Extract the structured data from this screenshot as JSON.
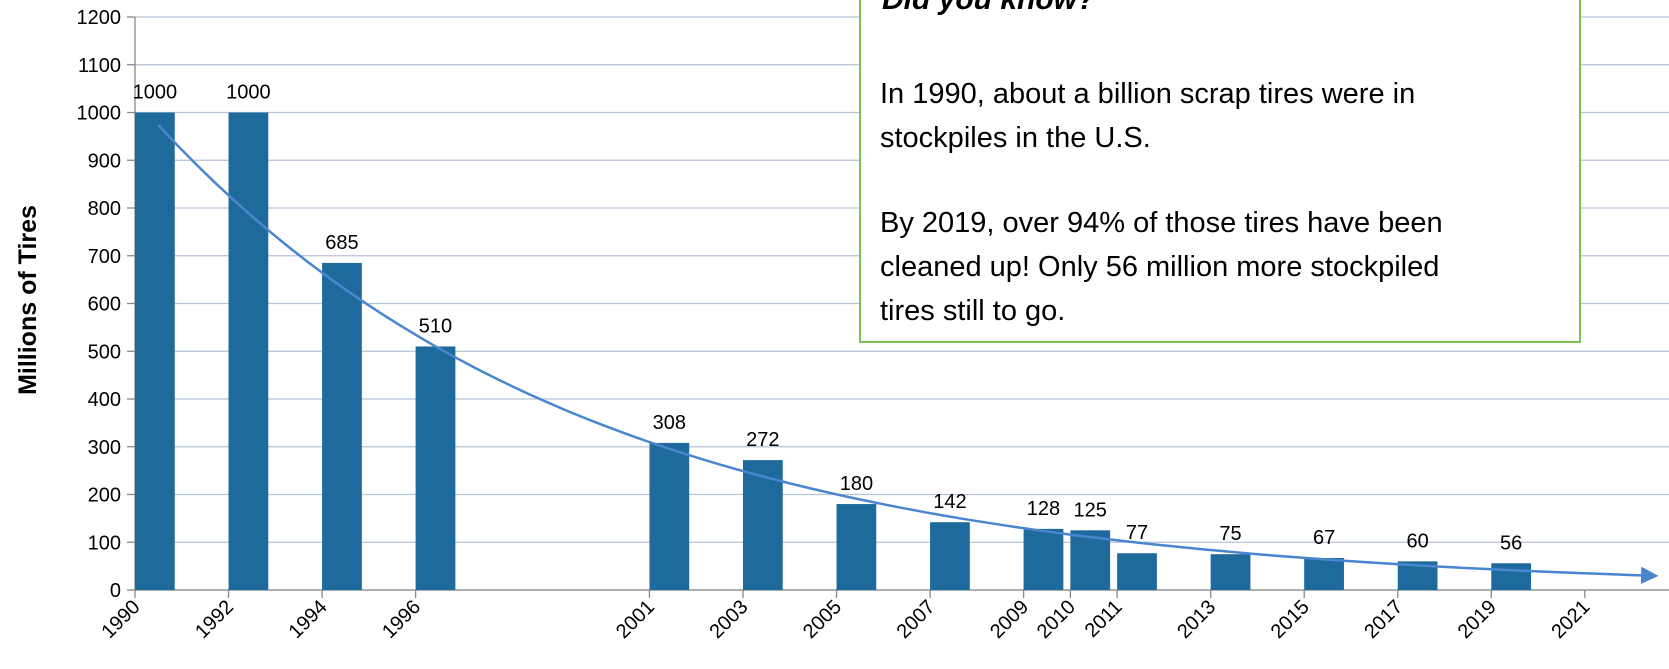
{
  "chart_data": {
    "type": "bar",
    "y_label": "Millions of Tires",
    "x": [
      1990,
      1992,
      1994,
      1996,
      2001,
      2003,
      2005,
      2007,
      2009,
      2010,
      2011,
      2013,
      2015,
      2017,
      2019
    ],
    "values": [
      1000,
      1000,
      685,
      510,
      308,
      272,
      180,
      142,
      128,
      125,
      77,
      75,
      67,
      60,
      56
    ],
    "color": "#1f6a9c",
    "trendline": {
      "type": "exponential",
      "color": "#4a86d0"
    },
    "xlim": [
      1990,
      2022.8
    ],
    "xticks": [
      1990,
      1992,
      1994,
      1996,
      2001,
      2003,
      2005,
      2007,
      2009,
      2010,
      2011,
      2013,
      2015,
      2017,
      2019,
      2021
    ],
    "ylim": [
      0,
      1200
    ],
    "yticks": [
      0,
      100,
      200,
      300,
      400,
      500,
      600,
      700,
      800,
      900,
      1000,
      1100,
      1200
    ],
    "grid": true,
    "annotation": {
      "title": "Did you know?",
      "lines": [
        "In 1990, about a billion scrap tires were in",
        "stockpiles in the U.S.",
        "By 2019, over 94% of those tires have been",
        "cleaned up!  Only 56 million more stockpiled",
        "tires still to go."
      ]
    }
  }
}
